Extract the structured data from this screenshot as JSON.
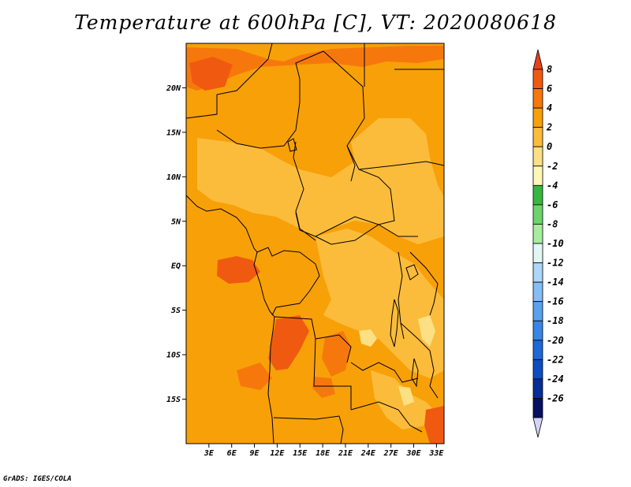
{
  "title": "Temperature at 600hPa [C], VT: 2020080618",
  "footer": "GrADS: IGES/COLA",
  "map": {
    "lon_range": [
      0,
      34
    ],
    "lat_range": [
      -20,
      25
    ],
    "lat_ticks": [
      {
        "label": "20N",
        "value": 20
      },
      {
        "label": "15N",
        "value": 15
      },
      {
        "label": "10N",
        "value": 10
      },
      {
        "label": "5N",
        "value": 5
      },
      {
        "label": "EQ",
        "value": 0
      },
      {
        "label": "5S",
        "value": -5
      },
      {
        "label": "10S",
        "value": -10
      },
      {
        "label": "15S",
        "value": -15
      }
    ],
    "lon_ticks": [
      {
        "label": "3E",
        "value": 3
      },
      {
        "label": "6E",
        "value": 6
      },
      {
        "label": "9E",
        "value": 9
      },
      {
        "label": "12E",
        "value": 12
      },
      {
        "label": "15E",
        "value": 15
      },
      {
        "label": "18E",
        "value": 18
      },
      {
        "label": "21E",
        "value": 21
      },
      {
        "label": "24E",
        "value": 24
      },
      {
        "label": "27E",
        "value": 27
      },
      {
        "label": "30E",
        "value": 30
      },
      {
        "label": "33E",
        "value": 33
      }
    ]
  },
  "colorbar": {
    "levels": [
      "8",
      "6",
      "4",
      "2",
      "0",
      "-2",
      "-4",
      "-6",
      "-8",
      "-10",
      "-12",
      "-14",
      "-16",
      "-18",
      "-20",
      "-22",
      "-24",
      "-26"
    ],
    "colors": [
      "#e8401c",
      "#f05a10",
      "#f6780d",
      "#f8a008",
      "#fbbc3c",
      "#fde084",
      "#fff7b8",
      "#36b840",
      "#6cd46c",
      "#a8eca0",
      "#e2f6f4",
      "#aed6f6",
      "#84bef4",
      "#5aa2ee",
      "#3a86e6",
      "#1e68d8",
      "#0c4ec0",
      "#062e96",
      "#081060",
      "#d4d4f8"
    ]
  },
  "colors": {
    "field_base": "#f8a008",
    "field_warm": "#f6780d",
    "field_hot": "#f05a10",
    "field_cool": "#fbbc3c",
    "field_cold": "#fde084",
    "border": "#000000"
  }
}
